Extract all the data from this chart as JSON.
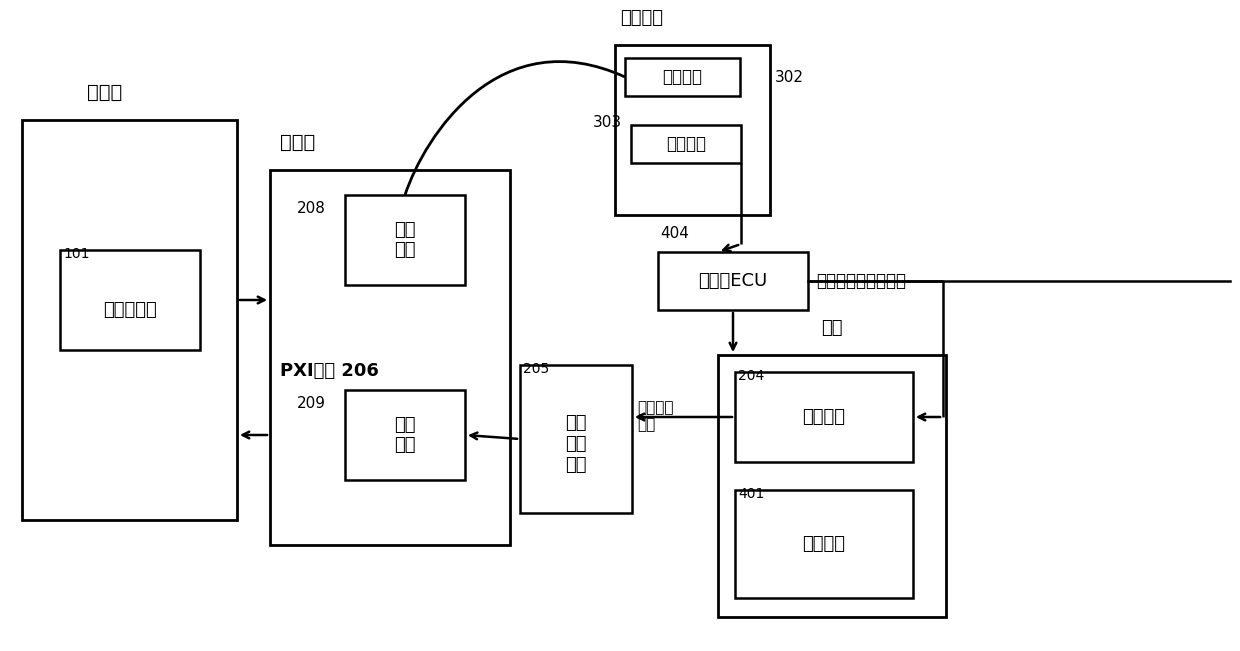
{
  "bg_color": "#ffffff",
  "figsize": [
    12.4,
    6.51
  ],
  "dpi": 100,
  "labels": {
    "shangweiji": "上位机",
    "xiaweiji": "下位机",
    "fuzai": "负载",
    "tiaoxian": "跳线装置",
    "kongzhi": "控制模拟负载的动作",
    "fuzai_status": "负载状态\n采集",
    "box_101_id": "101",
    "box_101_text": "工作站主机",
    "box_206_label": "PXI设备 206",
    "box_208_id": "208",
    "box_208_text": "输出\n板卡",
    "box_209_id": "209",
    "box_209_text": "输入\n板卡",
    "box_302_text": "输入接口",
    "box_302_label": "302",
    "box_303_id": "303",
    "box_303_text": "输出接口",
    "box_404_id": "404",
    "box_404_text": "发动机ECU",
    "box_205_id": "205",
    "box_205_text": "信号\n调理\n电路",
    "box_204_id": "204",
    "box_204_text": "模拟负载",
    "box_401_id": "401",
    "box_401_text": "实物负载"
  }
}
